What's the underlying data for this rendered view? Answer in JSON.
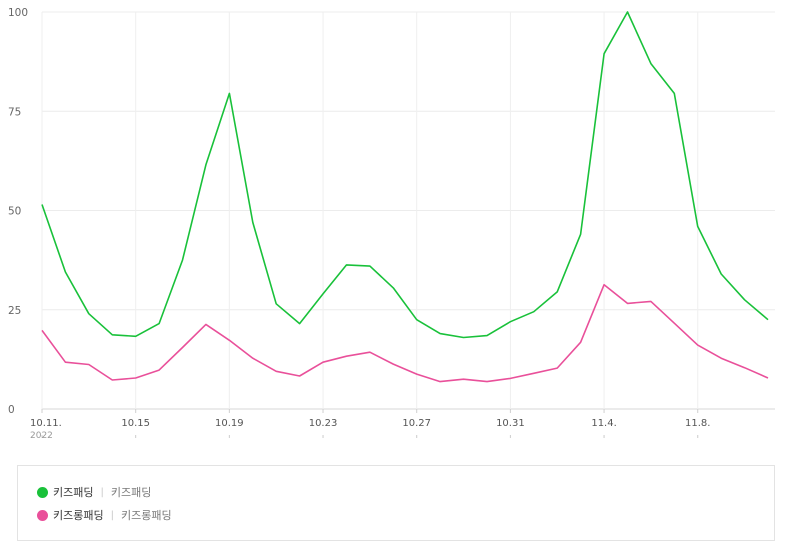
{
  "chart_data": {
    "type": "line",
    "x": [
      "10.11.",
      "10.12",
      "10.13",
      "10.14",
      "10.15",
      "10.16",
      "10.17",
      "10.18",
      "10.19",
      "10.20",
      "10.21",
      "10.22",
      "10.23",
      "10.24",
      "10.25",
      "10.26",
      "10.27",
      "10.28",
      "10.29",
      "10.30",
      "10.31",
      "11.1",
      "11.2",
      "11.3",
      "11.4.",
      "11.5",
      "11.6",
      "11.7",
      "11.8.",
      "11.9",
      "11.10",
      "11.11"
    ],
    "x_tick_labels": [
      {
        "index": 0,
        "label": "10.11."
      },
      {
        "index": 4,
        "label": "10.15"
      },
      {
        "index": 8,
        "label": "10.19"
      },
      {
        "index": 12,
        "label": "10.23"
      },
      {
        "index": 16,
        "label": "10.27"
      },
      {
        "index": 20,
        "label": "10.31"
      },
      {
        "index": 24,
        "label": "11.4."
      },
      {
        "index": 28,
        "label": "11.8."
      }
    ],
    "x_sub_label": "2022",
    "yticks": [
      0,
      25,
      50,
      75,
      100
    ],
    "ylim": [
      0,
      100
    ],
    "grid": true,
    "series": [
      {
        "name": "키즈패딩",
        "color": "#19c13a",
        "values": [
          51.5,
          34.5,
          24,
          18.7,
          18.3,
          21.5,
          37.5,
          61.5,
          79.5,
          47,
          26.5,
          21.5,
          29,
          36.3,
          36,
          30.5,
          22.5,
          19,
          18,
          18.5,
          22,
          24.5,
          29.5,
          44,
          89.5,
          100,
          87,
          79.5,
          46,
          34,
          27.5,
          22.5
        ]
      },
      {
        "name": "키즈롱패딩",
        "color": "#e9509a",
        "values": [
          19.8,
          11.8,
          11.2,
          7.3,
          7.8,
          9.8,
          15.5,
          21.3,
          17.3,
          12.8,
          9.5,
          8.3,
          11.8,
          13.3,
          14.3,
          11.3,
          8.8,
          6.9,
          7.5,
          6.9,
          7.7,
          9,
          10.3,
          16.8,
          31.3,
          26.6,
          27.1,
          21.6,
          16.1,
          12.8,
          10.4,
          7.8
        ]
      }
    ]
  },
  "legend": [
    {
      "name": "키즈패딩",
      "sub": "키즈패딩",
      "color": "#19c13a"
    },
    {
      "name": "키즈롱패딩",
      "sub": "키즈롱패딩",
      "color": "#e9509a"
    }
  ],
  "legend_separator": "|"
}
